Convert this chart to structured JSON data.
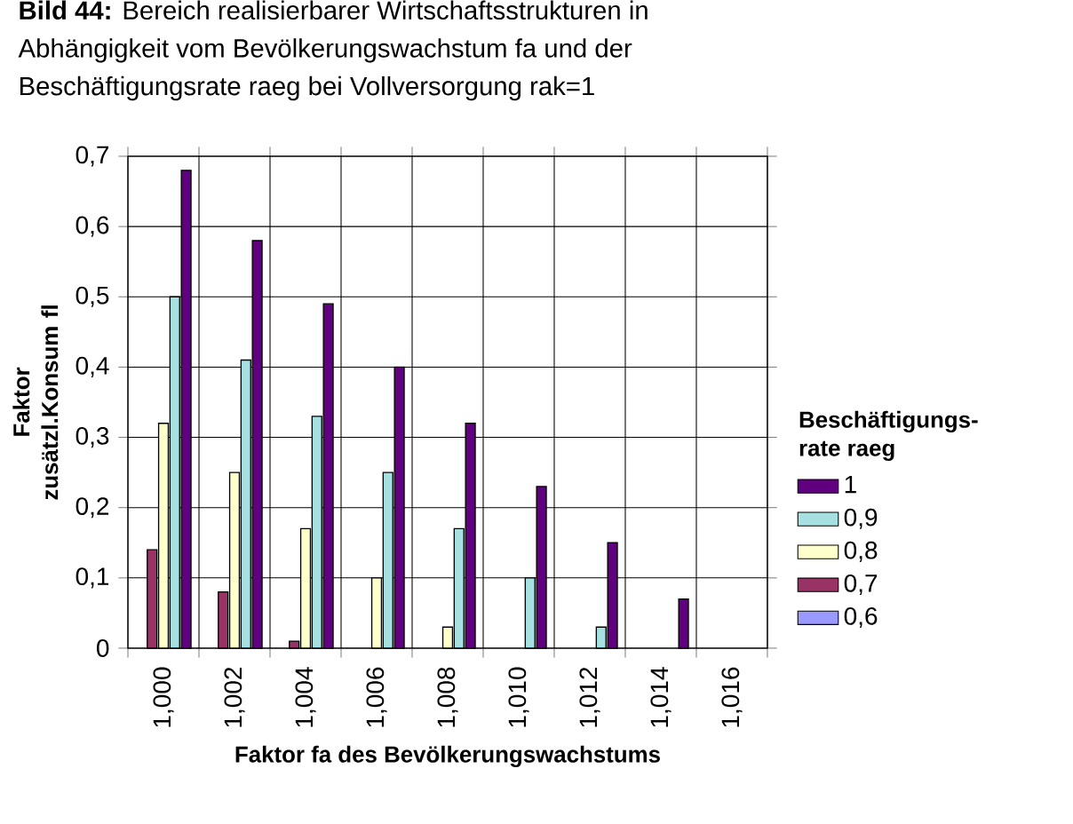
{
  "chart_data": {
    "type": "bar",
    "title": "**Bild 44:** Bereich realisierbarer Wirtschaftsstrukturen in Abhängigkeit vom Bevölkerungswachstum fa und der Beschäftigungsrate raeg bei Vollversorgung rak=1",
    "xlabel": "Faktor fa des Bevölkerungswachstums",
    "ylabel": "Faktor zusätzl.Konsum fl",
    "legend_title": "Beschäftigungs- rate raeg",
    "categories": [
      "1,000",
      "1,002",
      "1,004",
      "1,006",
      "1,008",
      "1,010",
      "1,012",
      "1,014",
      "1,016"
    ],
    "series": [
      {
        "name": "0,6",
        "color": "#9999ff",
        "values": [
          null,
          null,
          null,
          null,
          null,
          null,
          null,
          null,
          null
        ]
      },
      {
        "name": "0,7",
        "color": "#993366",
        "values": [
          0.14,
          0.08,
          0.01,
          null,
          null,
          null,
          null,
          null,
          null
        ]
      },
      {
        "name": "0,8",
        "color": "#ffffcc",
        "values": [
          0.32,
          0.25,
          0.17,
          0.1,
          0.03,
          null,
          null,
          null,
          null
        ]
      },
      {
        "name": "0,9",
        "color": "#a6e0e0",
        "values": [
          0.5,
          0.41,
          0.33,
          0.25,
          0.17,
          0.1,
          0.03,
          null,
          null
        ]
      },
      {
        "name": "1",
        "color": "#600080",
        "values": [
          0.68,
          0.58,
          0.49,
          0.4,
          0.32,
          0.23,
          0.15,
          0.07,
          null
        ]
      }
    ],
    "ylim": [
      0,
      0.7
    ],
    "yticks": [
      0,
      {
        "value": 0.1,
        "label": "0,1"
      },
      {
        "value": 0.2,
        "label": "0,2"
      },
      {
        "value": 0.3,
        "label": "0,3"
      },
      {
        "value": 0.4,
        "label": "0,4"
      },
      {
        "value": 0.5,
        "label": "0,5"
      },
      {
        "value": 0.6,
        "label": "0,6"
      },
      {
        "value": 0.7,
        "label": "0,7"
      }
    ],
    "grid": true,
    "legend": "right"
  }
}
